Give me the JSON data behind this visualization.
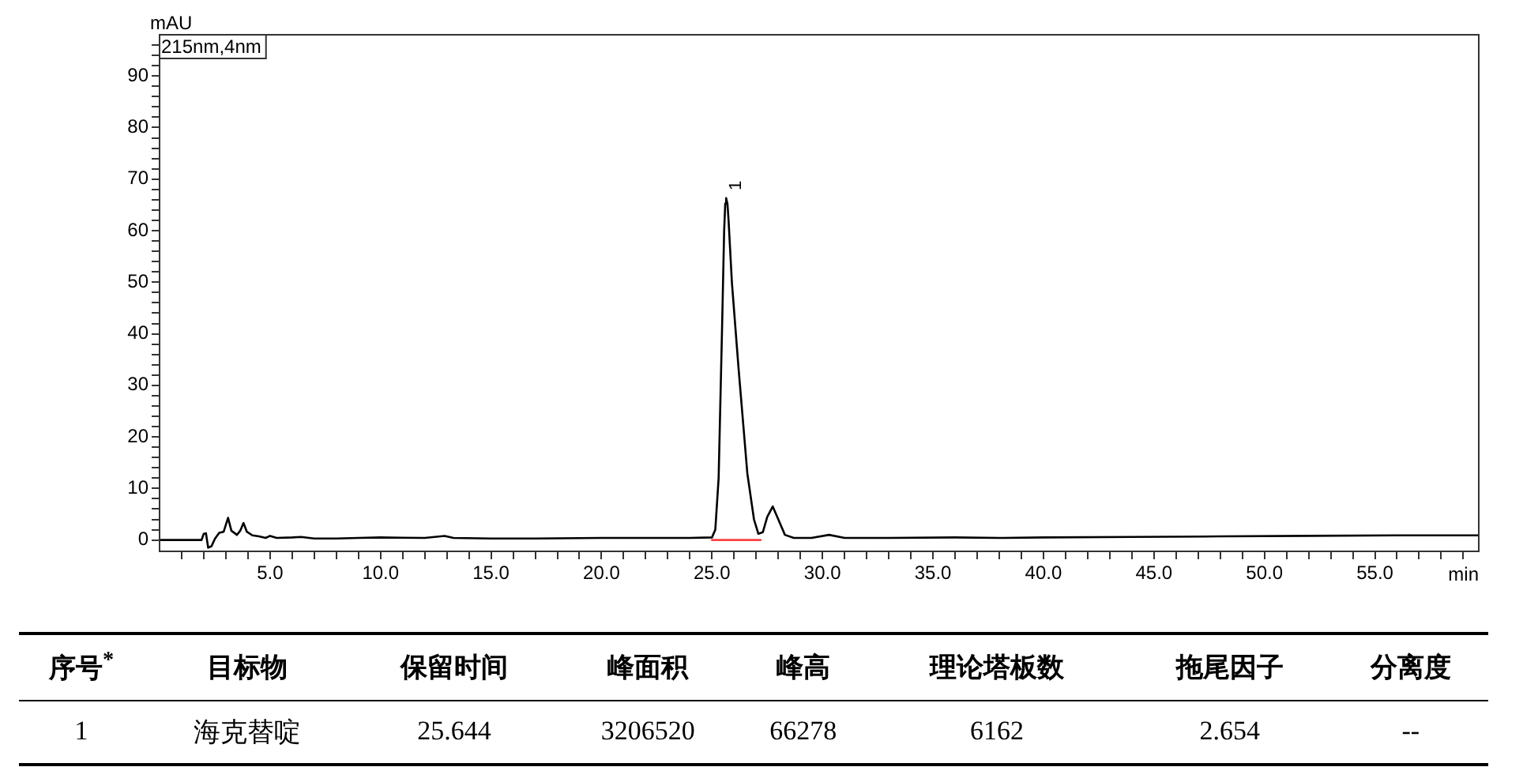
{
  "chart_data": {
    "type": "line",
    "xlabel": "min",
    "ylabel": "mAU",
    "x": [
      0,
      1.9,
      2.0,
      2.1,
      2.2,
      2.35,
      2.5,
      2.7,
      2.9,
      3.1,
      3.25,
      3.5,
      3.65,
      3.8,
      3.95,
      4.2,
      4.5,
      4.8,
      5.0,
      5.3,
      6.0,
      6.4,
      7,
      8,
      9,
      10,
      12,
      12.9,
      13.3,
      15,
      17,
      20,
      22,
      24,
      25.0,
      25.15,
      25.3,
      25.45,
      25.55,
      25.6,
      25.64,
      25.7,
      25.75,
      25.9,
      26.2,
      26.6,
      26.9,
      27.1,
      27.3,
      27.5,
      27.75,
      28.0,
      28.3,
      28.7,
      29.5,
      30.3,
      31,
      33,
      36,
      38,
      40,
      44,
      48,
      52,
      56,
      59.7
    ],
    "series": [
      {
        "color": "#000000",
        "values": [
          0,
          0,
          1.2,
          1.3,
          -1.5,
          -1.2,
          0.2,
          1.4,
          1.6,
          4.3,
          1.8,
          1.0,
          1.8,
          3.3,
          1.6,
          0.9,
          0.7,
          0.4,
          0.8,
          0.4,
          0.5,
          0.6,
          0.3,
          0.3,
          0.4,
          0.5,
          0.4,
          0.8,
          0.4,
          0.3,
          0.3,
          0.4,
          0.4,
          0.4,
          0.5,
          2,
          12,
          40,
          60,
          65.3,
          66.3,
          65.2,
          62,
          50,
          33.4,
          12.9,
          4,
          1.2,
          1.5,
          4.5,
          6.5,
          4,
          1,
          0.4,
          0.4,
          1.0,
          0.4,
          0.4,
          0.5,
          0.4,
          0.5,
          0.6,
          0.7,
          0.8,
          0.9,
          0.9
        ]
      },
      {
        "color": "#ff4040",
        "x": [
          25.0,
          27.2
        ],
        "values": [
          0,
          0
        ]
      }
    ],
    "xlim": [
      0,
      59.7
    ],
    "ylim": [
      -2.2,
      98
    ],
    "xticks": [
      {
        "value": 1,
        "label": null
      },
      {
        "value": 2,
        "label": null
      },
      {
        "value": 3,
        "label": null
      },
      {
        "value": 4,
        "label": null
      },
      {
        "value": 5,
        "label": "5.0"
      },
      {
        "value": 6,
        "label": null
      },
      {
        "value": 7,
        "label": null
      },
      {
        "value": 8,
        "label": null
      },
      {
        "value": 9,
        "label": null
      },
      {
        "value": 10,
        "label": "10.0"
      },
      {
        "value": 11,
        "label": null
      },
      {
        "value": 12,
        "label": null
      },
      {
        "value": 13,
        "label": null
      },
      {
        "value": 14,
        "label": null
      },
      {
        "value": 15,
        "label": "15.0"
      },
      {
        "value": 16,
        "label": null
      },
      {
        "value": 17,
        "label": null
      },
      {
        "value": 18,
        "label": null
      },
      {
        "value": 19,
        "label": null
      },
      {
        "value": 20,
        "label": "20.0"
      },
      {
        "value": 21,
        "label": null
      },
      {
        "value": 22,
        "label": null
      },
      {
        "value": 23,
        "label": null
      },
      {
        "value": 24,
        "label": null
      },
      {
        "value": 25,
        "label": "25.0"
      },
      {
        "value": 26,
        "label": null
      },
      {
        "value": 27,
        "label": null
      },
      {
        "value": 28,
        "label": null
      },
      {
        "value": 29,
        "label": null
      },
      {
        "value": 30,
        "label": "30.0"
      },
      {
        "value": 31,
        "label": null
      },
      {
        "value": 32,
        "label": null
      },
      {
        "value": 33,
        "label": null
      },
      {
        "value": 34,
        "label": null
      },
      {
        "value": 35,
        "label": "35.0"
      },
      {
        "value": 36,
        "label": null
      },
      {
        "value": 37,
        "label": null
      },
      {
        "value": 38,
        "label": null
      },
      {
        "value": 39,
        "label": null
      },
      {
        "value": 40,
        "label": "40.0"
      },
      {
        "value": 41,
        "label": null
      },
      {
        "value": 42,
        "label": null
      },
      {
        "value": 43,
        "label": null
      },
      {
        "value": 44,
        "label": null
      },
      {
        "value": 45,
        "label": "45.0"
      },
      {
        "value": 46,
        "label": null
      },
      {
        "value": 47,
        "label": null
      },
      {
        "value": 48,
        "label": null
      },
      {
        "value": 49,
        "label": null
      },
      {
        "value": 50,
        "label": "50.0"
      },
      {
        "value": 51,
        "label": null
      },
      {
        "value": 52,
        "label": null
      },
      {
        "value": 53,
        "label": null
      },
      {
        "value": 54,
        "label": null
      },
      {
        "value": 55,
        "label": "55.0"
      },
      {
        "value": 56,
        "label": null
      },
      {
        "value": 57,
        "label": null
      },
      {
        "value": 58,
        "label": null
      },
      {
        "value": 59,
        "label": null
      }
    ],
    "yticks": [
      0,
      {
        "value": 2,
        "label": null
      },
      {
        "value": 4,
        "label": null
      },
      {
        "value": 6,
        "label": null
      },
      {
        "value": 8,
        "label": null
      },
      10,
      {
        "value": 12,
        "label": null
      },
      {
        "value": 14,
        "label": null
      },
      {
        "value": 16,
        "label": null
      },
      {
        "value": 18,
        "label": null
      },
      20,
      {
        "value": 22,
        "label": null
      },
      {
        "value": 24,
        "label": null
      },
      {
        "value": 26,
        "label": null
      },
      {
        "value": 28,
        "label": null
      },
      30,
      {
        "value": 32,
        "label": null
      },
      {
        "value": 34,
        "label": null
      },
      {
        "value": 36,
        "label": null
      },
      {
        "value": 38,
        "label": null
      },
      40,
      {
        "value": 42,
        "label": null
      },
      {
        "value": 44,
        "label": null
      },
      {
        "value": 46,
        "label": null
      },
      {
        "value": 48,
        "label": null
      },
      50,
      {
        "value": 52,
        "label": null
      },
      {
        "value": 54,
        "label": null
      },
      {
        "value": 56,
        "label": null
      },
      {
        "value": 58,
        "label": null
      },
      60,
      {
        "value": 62,
        "label": null
      },
      {
        "value": 64,
        "label": null
      },
      {
        "value": 66,
        "label": null
      },
      {
        "value": 68,
        "label": null
      },
      70,
      {
        "value": 72,
        "label": null
      },
      {
        "value": 74,
        "label": null
      },
      {
        "value": 76,
        "label": null
      },
      {
        "value": 78,
        "label": null
      },
      80,
      {
        "value": 82,
        "label": null
      },
      {
        "value": 84,
        "label": null
      },
      {
        "value": 86,
        "label": null
      },
      {
        "value": 88,
        "label": null
      },
      90,
      {
        "value": 92,
        "label": null
      },
      {
        "value": 94,
        "label": null
      },
      {
        "value": 96,
        "label": null
      }
    ],
    "grid": false,
    "legend": false,
    "marker": "none",
    "line_style": "solid",
    "annotations": [
      "215nm,4nm",
      {
        "text": "1",
        "x": 25.64,
        "y": 66.3
      },
      "序号$^{*}$",
      "目标物",
      "保留时间",
      "峰面积",
      "峰高",
      "理论塔板数",
      "拖尾因子",
      "分离度",
      "1",
      "海克替啶",
      "25.644",
      "3206520",
      "66278",
      "6162",
      "2.654",
      "--"
    ]
  }
}
